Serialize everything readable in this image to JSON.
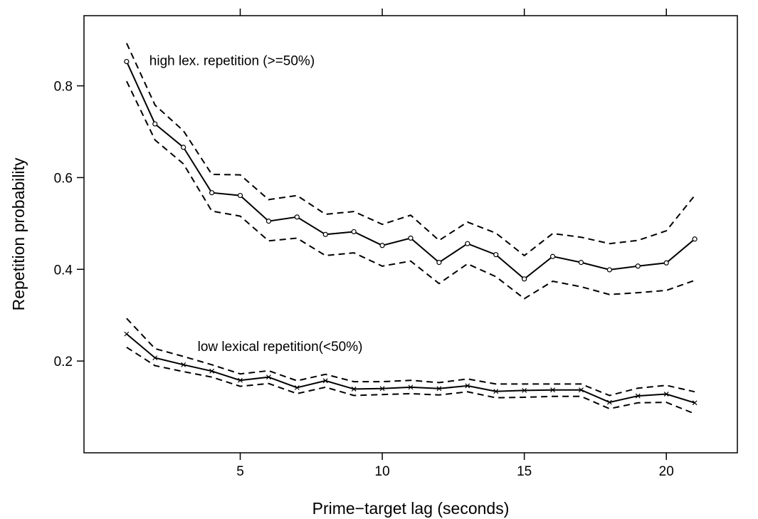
{
  "chart_data": {
    "type": "line",
    "title": "",
    "xlabel": "Prime−target lag (seconds)",
    "ylabel": "Repetition probability",
    "xlim": [
      -0.5,
      22.5
    ],
    "ylim": [
      0.0,
      0.953
    ],
    "x_ticks": [
      5,
      10,
      15,
      20
    ],
    "x_tick_labels": [
      "5",
      "10",
      "15",
      "20"
    ],
    "y_ticks": [
      0.2,
      0.4,
      0.6,
      0.8
    ],
    "y_tick_labels": [
      "0.2",
      "0.4",
      "0.6",
      "0.8"
    ],
    "grid": false,
    "x": [
      1,
      2,
      3,
      4,
      5,
      6,
      7,
      8,
      9,
      10,
      11,
      12,
      13,
      14,
      15,
      16,
      17,
      18,
      19,
      20,
      21
    ],
    "series": [
      {
        "name": "",
        "marker": "circle",
        "values": [
          0.853,
          0.717,
          0.666,
          0.567,
          0.561,
          0.505,
          0.514,
          0.476,
          0.482,
          0.452,
          0.468,
          0.415,
          0.456,
          0.432,
          0.379,
          0.428,
          0.415,
          0.399,
          0.407,
          0.414,
          0.466
        ],
        "upper": [
          0.893,
          0.758,
          0.702,
          0.607,
          0.606,
          0.552,
          0.561,
          0.52,
          0.526,
          0.498,
          0.518,
          0.463,
          0.503,
          0.479,
          0.43,
          0.478,
          0.47,
          0.456,
          0.463,
          0.484,
          0.561
        ],
        "lower": [
          0.81,
          0.682,
          0.63,
          0.527,
          0.516,
          0.462,
          0.468,
          0.43,
          0.436,
          0.407,
          0.418,
          0.369,
          0.412,
          0.384,
          0.336,
          0.374,
          0.362,
          0.345,
          0.349,
          0.354,
          0.376
        ]
      },
      {
        "name": "",
        "marker": "x",
        "values": [
          0.259,
          0.207,
          0.192,
          0.178,
          0.158,
          0.165,
          0.142,
          0.157,
          0.139,
          0.14,
          0.143,
          0.14,
          0.146,
          0.134,
          0.136,
          0.137,
          0.137,
          0.11,
          0.124,
          0.128,
          0.109
        ],
        "upper": [
          0.293,
          0.227,
          0.21,
          0.192,
          0.172,
          0.179,
          0.157,
          0.171,
          0.155,
          0.155,
          0.158,
          0.153,
          0.161,
          0.15,
          0.15,
          0.15,
          0.15,
          0.125,
          0.141,
          0.147,
          0.133
        ],
        "lower": [
          0.23,
          0.19,
          0.177,
          0.165,
          0.145,
          0.151,
          0.129,
          0.143,
          0.125,
          0.127,
          0.129,
          0.126,
          0.133,
          0.12,
          0.121,
          0.123,
          0.123,
          0.096,
          0.109,
          0.11,
          0.085
        ]
      }
    ],
    "annotations": [
      {
        "text": "high lex. repetition (>=50%)",
        "x": 1.8,
        "y": 0.845
      },
      {
        "text": "low lexical repetition(<50%)",
        "x": 3.5,
        "y": 0.222
      }
    ]
  }
}
